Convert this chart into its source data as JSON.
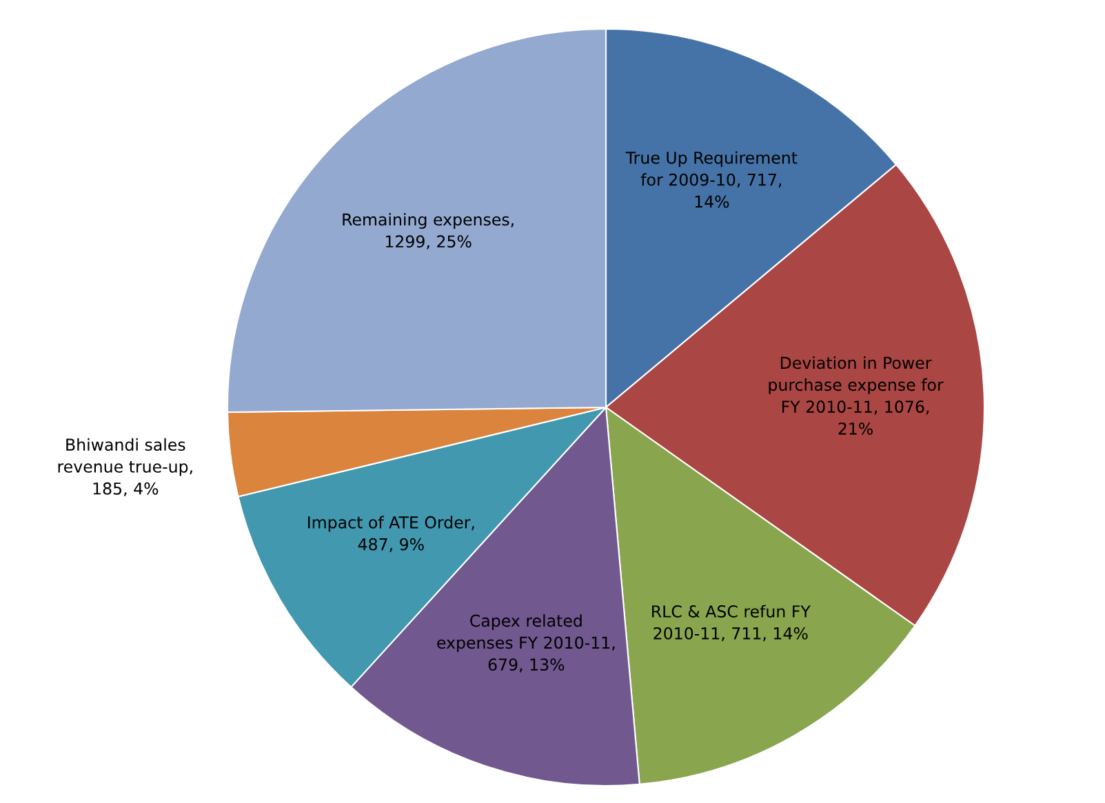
{
  "chart_data": {
    "type": "pie",
    "categories": [
      "True Up Requirement for 2009-10, 717, 14%",
      "Deviation in Power purchase expense for FY 2010-11, 1076, 21%",
      "RLC & ASC refun FY 2010-11, 711, 14%",
      "Capex related expenses FY 2010-11, 679, 13%",
      "Impact of ATE Order, 487, 9%",
      "Bhiwandi sales revenue true-up, 185, 4%",
      "Remaining expenses, 1299, 25%"
    ],
    "values": [
      717,
      1076,
      711,
      679,
      487,
      185,
      1299
    ],
    "colors": [
      "#4673a7",
      "#aa4643",
      "#89a54e",
      "#71588f",
      "#4198af",
      "#db843d",
      "#93a9d0"
    ],
    "legend": false
  }
}
